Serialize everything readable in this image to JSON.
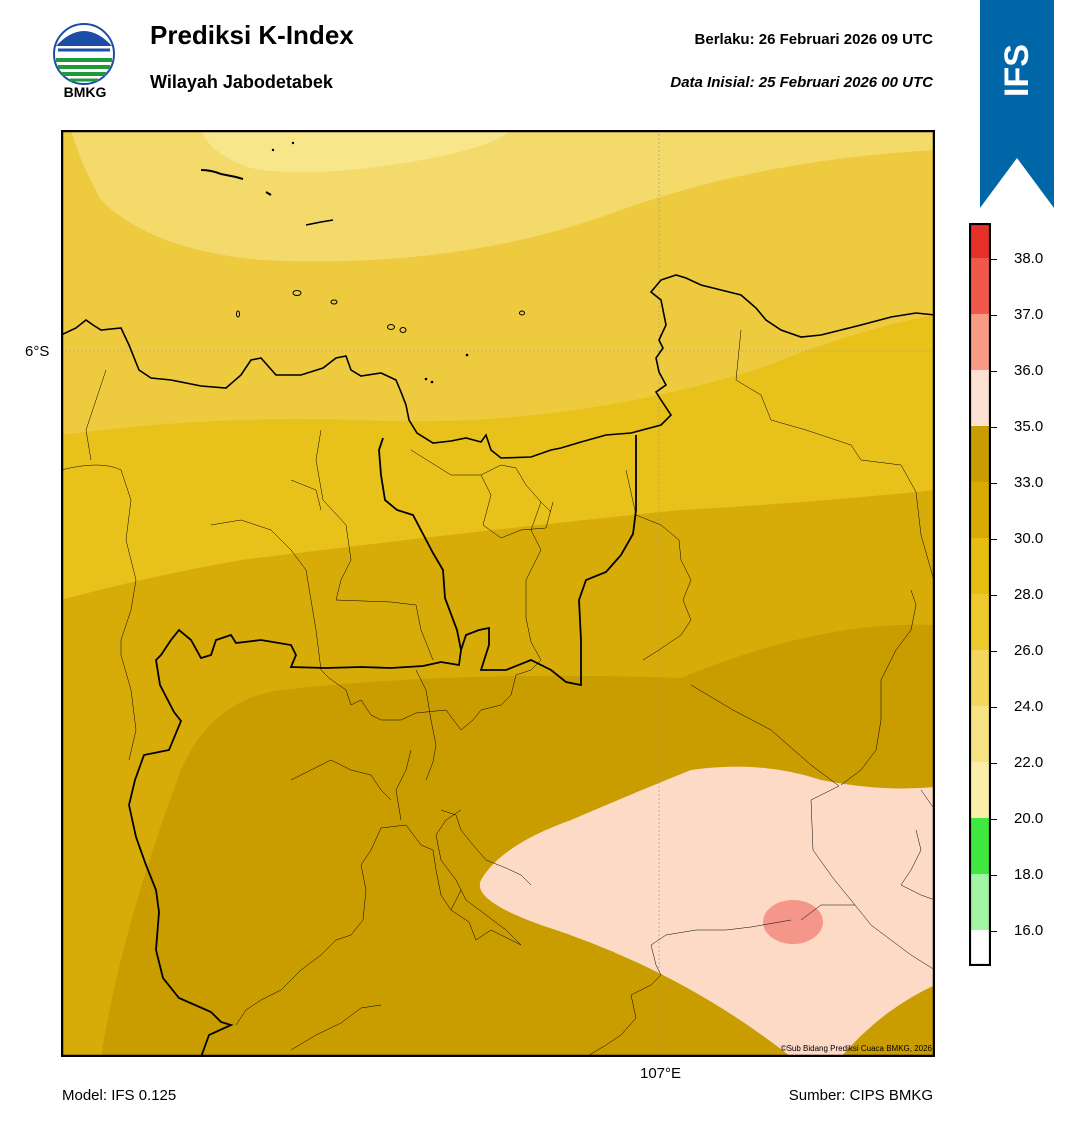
{
  "header": {
    "logo_text": "BMKG",
    "title": "Prediksi K-Index",
    "subtitle": "Wilayah Jabodetabek",
    "valid_line": "Berlaku:  26 Februari 2026 09 UTC",
    "init_line": "Data Inisial:  25 Februari 2026 00 UTC",
    "ribbon_text": "IFS"
  },
  "map": {
    "lat_label": "6°S",
    "lon_label": "107°E",
    "credit": "©Sub Bidang Prediksi Cuaca BMKG, 2026"
  },
  "footer": {
    "model": "Model: IFS 0.125",
    "source": "Sumber: CIPS BMKG"
  },
  "colorbar": {
    "ticks": [
      "38.0",
      "37.0",
      "36.0",
      "35.0",
      "33.0",
      "30.0",
      "28.0",
      "26.0",
      "24.0",
      "22.0",
      "20.0",
      "18.0",
      "16.0"
    ],
    "colors_top_to_bottom": [
      "#e6302a",
      "#f0584a",
      "#f89a86",
      "#fde2d3",
      "#c99c00",
      "#d8aa04",
      "#e7bd10",
      "#edc92c",
      "#f3d65c",
      "#f7e284",
      "#fbeea8",
      "#fdf5b0",
      "#3ee83e",
      "#a2f5a2",
      "#ffffff"
    ],
    "field_colors": {
      "lightest": "#f8e68a",
      "light": "#f3da6a",
      "mid_light": "#edca3e",
      "mid": "#e8c21a",
      "mid_dark": "#d8ac08",
      "dark": "#c99c00",
      "peach": "#fcdac6",
      "salmon": "#f4978a"
    }
  },
  "icons": {
    "logo": "bmkg-logo-icon",
    "ribbon": "ifs-ribbon-icon"
  }
}
